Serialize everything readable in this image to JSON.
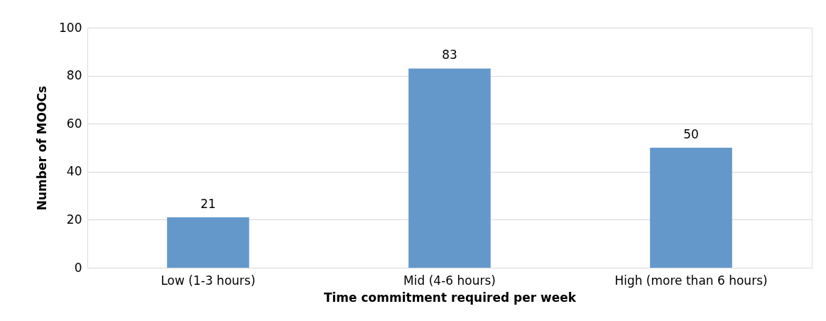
{
  "chart_data": {
    "type": "bar",
    "xlabel": "Time commitment required per week",
    "ylabel": "Number of MOOCs",
    "categories": [
      "Low (1-3 hours)",
      "Mid (4-6 hours)",
      "High (more than 6 hours)"
    ],
    "values": [
      21,
      83,
      50
    ],
    "color": "#6498cb",
    "ylim": [
      0,
      100
    ],
    "yticks": [
      0,
      20,
      40,
      60,
      80,
      100
    ],
    "grid": "y",
    "data_labels": true
  }
}
